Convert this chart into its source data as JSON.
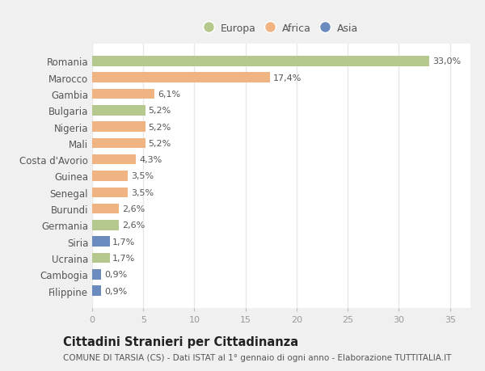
{
  "countries": [
    "Romania",
    "Marocco",
    "Gambia",
    "Bulgaria",
    "Nigeria",
    "Mali",
    "Costa d'Avorio",
    "Guinea",
    "Senegal",
    "Burundi",
    "Germania",
    "Siria",
    "Ucraina",
    "Cambogia",
    "Filippine"
  ],
  "values": [
    33.0,
    17.4,
    6.1,
    5.2,
    5.2,
    5.2,
    4.3,
    3.5,
    3.5,
    2.6,
    2.6,
    1.7,
    1.7,
    0.9,
    0.9
  ],
  "labels": [
    "33,0%",
    "17,4%",
    "6,1%",
    "5,2%",
    "5,2%",
    "5,2%",
    "4,3%",
    "3,5%",
    "3,5%",
    "2,6%",
    "2,6%",
    "1,7%",
    "1,7%",
    "0,9%",
    "0,9%"
  ],
  "continents": [
    "Europa",
    "Africa",
    "Africa",
    "Europa",
    "Africa",
    "Africa",
    "Africa",
    "Africa",
    "Africa",
    "Africa",
    "Europa",
    "Asia",
    "Europa",
    "Asia",
    "Asia"
  ],
  "colors": {
    "Europa": "#b5c98e",
    "Africa": "#f0b482",
    "Asia": "#6b8bbf"
  },
  "legend": [
    "Europa",
    "Africa",
    "Asia"
  ],
  "title": "Cittadini Stranieri per Cittadinanza",
  "subtitle": "COMUNE DI TARSIA (CS) - Dati ISTAT al 1° gennaio di ogni anno - Elaborazione TUTTITALIA.IT",
  "xlim": [
    0,
    37
  ],
  "xticks": [
    0,
    5,
    10,
    15,
    20,
    25,
    30,
    35
  ],
  "fig_bg_color": "#f0f0f0",
  "plot_bg_color": "#ffffff",
  "grid_color": "#e8e8e8",
  "label_color": "#555555",
  "tick_color": "#999999",
  "label_fontsize": 8.0,
  "tick_fontsize": 8.0,
  "ylabel_fontsize": 8.5,
  "title_fontsize": 10.5,
  "subtitle_fontsize": 7.5,
  "legend_fontsize": 9.0
}
